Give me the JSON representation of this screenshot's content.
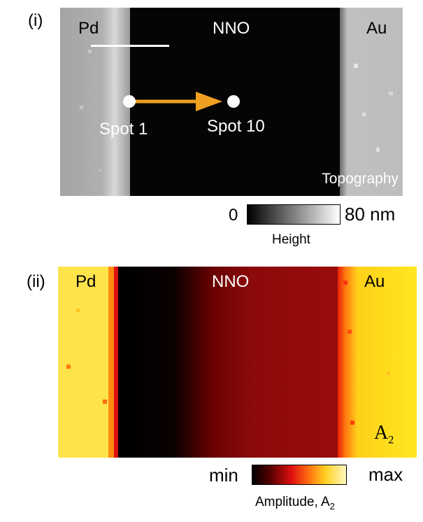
{
  "panel_i": {
    "label": "(i)",
    "regions": {
      "left": "Pd",
      "middle": "NNO",
      "right": "Au"
    },
    "spot_start": "Spot 1",
    "spot_end": "Spot 10",
    "mode": "Topography",
    "colorbar": {
      "min": "0",
      "max": "80 nm",
      "title": "Height"
    },
    "colors": {
      "arrow": "#f0a020",
      "spot": "#ffffff"
    }
  },
  "panel_ii": {
    "label": "(ii)",
    "regions": {
      "left": "Pd",
      "middle": "NNO",
      "right": "Au"
    },
    "corner_symbol": "A",
    "corner_subscript": "2",
    "colorbar": {
      "min": "min",
      "max": "max",
      "title": "Amplitude, A",
      "title_subscript": "2"
    }
  }
}
